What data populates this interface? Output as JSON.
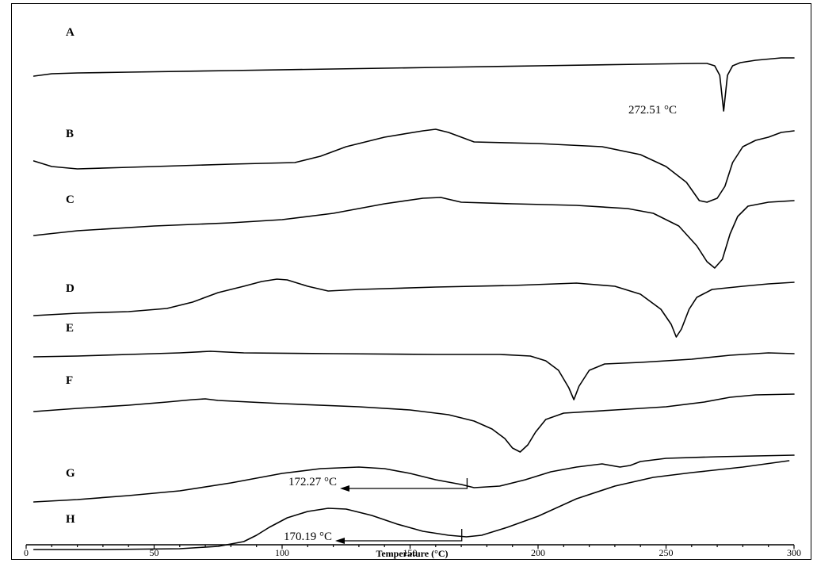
{
  "chart_data": {
    "type": "line",
    "title": "",
    "xlabel": "Temperature (°C)",
    "ylabel": "",
    "xlim": [
      0,
      300
    ],
    "x_ticks": [
      0,
      50,
      100,
      150,
      200,
      250,
      300
    ],
    "grid": false,
    "legend": "none",
    "series": [
      {
        "name": "A",
        "points": [
          [
            3,
            91
          ],
          [
            10,
            88
          ],
          [
            20,
            87
          ],
          [
            40,
            86
          ],
          [
            80,
            84
          ],
          [
            120,
            82
          ],
          [
            160,
            80
          ],
          [
            200,
            78
          ],
          [
            240,
            76
          ],
          [
            262,
            75
          ],
          [
            266,
            75
          ],
          [
            269,
            78
          ],
          [
            271,
            90
          ],
          [
            272.5,
            135
          ],
          [
            274,
            90
          ],
          [
            276,
            78
          ],
          [
            279,
            74
          ],
          [
            285,
            71
          ],
          [
            295,
            68
          ],
          [
            300,
            68
          ]
        ]
      },
      {
        "name": "B",
        "points": [
          [
            3,
            198
          ],
          [
            10,
            205
          ],
          [
            20,
            208
          ],
          [
            40,
            206
          ],
          [
            80,
            202
          ],
          [
            105,
            200
          ],
          [
            115,
            192
          ],
          [
            125,
            180
          ],
          [
            140,
            168
          ],
          [
            155,
            160
          ],
          [
            160,
            158
          ],
          [
            165,
            162
          ],
          [
            175,
            174
          ],
          [
            200,
            176
          ],
          [
            225,
            180
          ],
          [
            240,
            190
          ],
          [
            250,
            205
          ],
          [
            258,
            225
          ],
          [
            263,
            248
          ],
          [
            266,
            250
          ],
          [
            270,
            245
          ],
          [
            273,
            230
          ],
          [
            276,
            200
          ],
          [
            280,
            180
          ],
          [
            285,
            172
          ],
          [
            290,
            168
          ],
          [
            295,
            162
          ],
          [
            300,
            160
          ]
        ]
      },
      {
        "name": "C",
        "points": [
          [
            3,
            292
          ],
          [
            20,
            286
          ],
          [
            50,
            280
          ],
          [
            80,
            276
          ],
          [
            100,
            272
          ],
          [
            120,
            264
          ],
          [
            140,
            252
          ],
          [
            155,
            245
          ],
          [
            162,
            244
          ],
          [
            170,
            250
          ],
          [
            190,
            252
          ],
          [
            215,
            254
          ],
          [
            235,
            258
          ],
          [
            245,
            264
          ],
          [
            255,
            280
          ],
          [
            262,
            305
          ],
          [
            266,
            325
          ],
          [
            269,
            333
          ],
          [
            272,
            322
          ],
          [
            275,
            290
          ],
          [
            278,
            268
          ],
          [
            282,
            255
          ],
          [
            290,
            250
          ],
          [
            300,
            248
          ]
        ]
      },
      {
        "name": "D",
        "points": [
          [
            3,
            393
          ],
          [
            20,
            390
          ],
          [
            40,
            388
          ],
          [
            55,
            384
          ],
          [
            65,
            376
          ],
          [
            75,
            364
          ],
          [
            85,
            356
          ],
          [
            92,
            350
          ],
          [
            98,
            347
          ],
          [
            102,
            348
          ],
          [
            110,
            356
          ],
          [
            118,
            362
          ],
          [
            130,
            360
          ],
          [
            160,
            357
          ],
          [
            190,
            355
          ],
          [
            215,
            352
          ],
          [
            230,
            356
          ],
          [
            240,
            366
          ],
          [
            248,
            385
          ],
          [
            252,
            404
          ],
          [
            254,
            420
          ],
          [
            256,
            410
          ],
          [
            259,
            385
          ],
          [
            262,
            370
          ],
          [
            268,
            360
          ],
          [
            280,
            356
          ],
          [
            290,
            353
          ],
          [
            300,
            351
          ]
        ]
      },
      {
        "name": "E",
        "points": [
          [
            3,
            445
          ],
          [
            20,
            444
          ],
          [
            40,
            442
          ],
          [
            60,
            440
          ],
          [
            72,
            438
          ],
          [
            85,
            440
          ],
          [
            120,
            441
          ],
          [
            160,
            442
          ],
          [
            185,
            442
          ],
          [
            197,
            444
          ],
          [
            203,
            450
          ],
          [
            208,
            462
          ],
          [
            212,
            484
          ],
          [
            214,
            499
          ],
          [
            216,
            482
          ],
          [
            220,
            462
          ],
          [
            226,
            454
          ],
          [
            240,
            452
          ],
          [
            260,
            448
          ],
          [
            275,
            443
          ],
          [
            290,
            440
          ],
          [
            300,
            441
          ]
        ]
      },
      {
        "name": "F",
        "points": [
          [
            3,
            514
          ],
          [
            20,
            510
          ],
          [
            40,
            506
          ],
          [
            55,
            502
          ],
          [
            65,
            499
          ],
          [
            70,
            498
          ],
          [
            75,
            500
          ],
          [
            100,
            504
          ],
          [
            130,
            508
          ],
          [
            150,
            512
          ],
          [
            165,
            518
          ],
          [
            175,
            526
          ],
          [
            182,
            536
          ],
          [
            187,
            548
          ],
          [
            190,
            560
          ],
          [
            193,
            565
          ],
          [
            196,
            556
          ],
          [
            199,
            540
          ],
          [
            203,
            524
          ],
          [
            210,
            516
          ],
          [
            230,
            512
          ],
          [
            250,
            508
          ],
          [
            265,
            502
          ],
          [
            275,
            496
          ],
          [
            285,
            493
          ],
          [
            300,
            492
          ]
        ]
      },
      {
        "name": "G",
        "points": [
          [
            3,
            628
          ],
          [
            20,
            625
          ],
          [
            40,
            620
          ],
          [
            60,
            614
          ],
          [
            80,
            604
          ],
          [
            100,
            592
          ],
          [
            115,
            586
          ],
          [
            130,
            584
          ],
          [
            140,
            586
          ],
          [
            150,
            592
          ],
          [
            160,
            600
          ],
          [
            170,
            606
          ],
          [
            175,
            610
          ],
          [
            185,
            608
          ],
          [
            195,
            600
          ],
          [
            205,
            590
          ],
          [
            215,
            584
          ],
          [
            225,
            580
          ],
          [
            232,
            584
          ],
          [
            236,
            582
          ],
          [
            240,
            577
          ],
          [
            250,
            573
          ],
          [
            270,
            571
          ],
          [
            300,
            569
          ]
        ]
      },
      {
        "name": "H",
        "points": [
          [
            3,
            688
          ],
          [
            30,
            688
          ],
          [
            60,
            687
          ],
          [
            75,
            684
          ],
          [
            85,
            678
          ],
          [
            90,
            670
          ],
          [
            95,
            660
          ],
          [
            102,
            648
          ],
          [
            110,
            640
          ],
          [
            118,
            636
          ],
          [
            125,
            637
          ],
          [
            135,
            645
          ],
          [
            145,
            656
          ],
          [
            155,
            665
          ],
          [
            165,
            670
          ],
          [
            172,
            672
          ],
          [
            178,
            670
          ],
          [
            188,
            660
          ],
          [
            200,
            646
          ],
          [
            215,
            624
          ],
          [
            230,
            608
          ],
          [
            245,
            597
          ],
          [
            260,
            591
          ],
          [
            280,
            584
          ],
          [
            298,
            576
          ]
        ]
      }
    ],
    "annotations": [
      {
        "series": "A",
        "label": "272.51 °C",
        "x": 272.51
      },
      {
        "series": "G",
        "label": "172.27 °C",
        "x": 172.27
      },
      {
        "series": "H",
        "label": "170.19 °C",
        "x": 170.19
      }
    ]
  }
}
